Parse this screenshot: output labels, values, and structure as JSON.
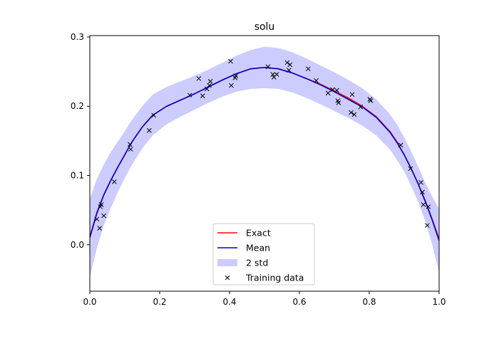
{
  "chart_data": {
    "type": "line",
    "title": "solu",
    "xlabel": "",
    "ylabel": "",
    "xlim": [
      0.0,
      1.0
    ],
    "ylim": [
      -0.067,
      0.302
    ],
    "xticks": [
      "0.0",
      "0.2",
      "0.4",
      "0.6",
      "0.8",
      "1.0"
    ],
    "yticks": [
      "0.0",
      "0.1",
      "0.2",
      "0.3"
    ],
    "legend_position": "lower-center",
    "grid": false,
    "colors": {
      "exact": "#ff0000",
      "mean": "#0000cc",
      "band": "#ccccff",
      "points": "#000000"
    },
    "series": [
      {
        "name": "Exact",
        "kind": "line",
        "x": [
          0.0,
          0.02,
          0.04,
          0.06,
          0.08,
          0.1,
          0.12,
          0.15,
          0.18,
          0.22,
          0.26,
          0.3,
          0.34,
          0.38,
          0.42,
          0.46,
          0.5,
          0.54,
          0.58,
          0.62,
          0.66,
          0.7,
          0.74,
          0.78,
          0.82,
          0.86,
          0.88,
          0.9,
          0.92,
          0.94,
          0.96,
          0.98,
          1.0
        ],
        "y": [
          0.01,
          0.045,
          0.072,
          0.093,
          0.112,
          0.13,
          0.148,
          0.17,
          0.187,
          0.2,
          0.209,
          0.218,
          0.228,
          0.238,
          0.247,
          0.254,
          0.256,
          0.254,
          0.248,
          0.24,
          0.232,
          0.222,
          0.212,
          0.2,
          0.185,
          0.163,
          0.148,
          0.13,
          0.11,
          0.088,
          0.064,
          0.037,
          0.008
        ]
      },
      {
        "name": "Mean",
        "kind": "line",
        "x": [
          0.0,
          0.02,
          0.04,
          0.06,
          0.08,
          0.1,
          0.12,
          0.15,
          0.18,
          0.22,
          0.26,
          0.3,
          0.34,
          0.38,
          0.42,
          0.46,
          0.5,
          0.54,
          0.58,
          0.62,
          0.66,
          0.7,
          0.74,
          0.78,
          0.82,
          0.86,
          0.88,
          0.9,
          0.92,
          0.94,
          0.96,
          0.98,
          1.0
        ],
        "y": [
          0.011,
          0.046,
          0.072,
          0.093,
          0.112,
          0.13,
          0.148,
          0.17,
          0.187,
          0.2,
          0.209,
          0.218,
          0.228,
          0.238,
          0.247,
          0.254,
          0.256,
          0.254,
          0.248,
          0.24,
          0.231,
          0.221,
          0.21,
          0.199,
          0.184,
          0.162,
          0.147,
          0.13,
          0.11,
          0.088,
          0.063,
          0.036,
          0.006
        ]
      },
      {
        "name": "2 std",
        "kind": "band",
        "x": [
          0.0,
          0.02,
          0.04,
          0.06,
          0.08,
          0.1,
          0.12,
          0.15,
          0.18,
          0.22,
          0.26,
          0.3,
          0.34,
          0.38,
          0.42,
          0.46,
          0.5,
          0.54,
          0.58,
          0.62,
          0.66,
          0.7,
          0.74,
          0.78,
          0.82,
          0.86,
          0.88,
          0.9,
          0.92,
          0.94,
          0.96,
          0.98,
          1.0
        ],
        "lower": [
          -0.047,
          -0.005,
          0.028,
          0.053,
          0.076,
          0.096,
          0.115,
          0.139,
          0.158,
          0.174,
          0.185,
          0.195,
          0.205,
          0.214,
          0.221,
          0.225,
          0.226,
          0.225,
          0.22,
          0.212,
          0.203,
          0.193,
          0.183,
          0.172,
          0.158,
          0.137,
          0.122,
          0.106,
          0.085,
          0.062,
          0.035,
          0.001,
          -0.04
        ],
        "upper": [
          0.066,
          0.095,
          0.116,
          0.134,
          0.149,
          0.164,
          0.18,
          0.2,
          0.217,
          0.228,
          0.236,
          0.244,
          0.253,
          0.263,
          0.273,
          0.281,
          0.286,
          0.284,
          0.278,
          0.269,
          0.259,
          0.249,
          0.238,
          0.226,
          0.21,
          0.188,
          0.173,
          0.155,
          0.135,
          0.113,
          0.09,
          0.07,
          0.052
        ]
      },
      {
        "name": "Training data",
        "kind": "scatter",
        "x": [
          0.02,
          0.028,
          0.03,
          0.033,
          0.04,
          0.07,
          0.115,
          0.117,
          0.17,
          0.183,
          0.286,
          0.312,
          0.323,
          0.335,
          0.342,
          0.345,
          0.403,
          0.405,
          0.416,
          0.418,
          0.51,
          0.524,
          0.527,
          0.535,
          0.565,
          0.57,
          0.573,
          0.625,
          0.648,
          0.682,
          0.695,
          0.707,
          0.71,
          0.712,
          0.748,
          0.751,
          0.757,
          0.775,
          0.802,
          0.804,
          0.89,
          0.918,
          0.948,
          0.952,
          0.955,
          0.966,
          0.969
        ],
        "y": [
          0.037,
          0.024,
          0.055,
          0.058,
          0.042,
          0.091,
          0.145,
          0.138,
          0.165,
          0.187,
          0.216,
          0.24,
          0.215,
          0.225,
          0.23,
          0.236,
          0.265,
          0.23,
          0.241,
          0.244,
          0.257,
          0.246,
          0.242,
          0.246,
          0.263,
          0.252,
          0.26,
          0.254,
          0.237,
          0.219,
          0.224,
          0.223,
          0.208,
          0.205,
          0.191,
          0.217,
          0.188,
          0.199,
          0.21,
          0.208,
          0.144,
          0.11,
          0.09,
          0.076,
          0.058,
          0.028,
          0.055
        ]
      }
    ]
  }
}
